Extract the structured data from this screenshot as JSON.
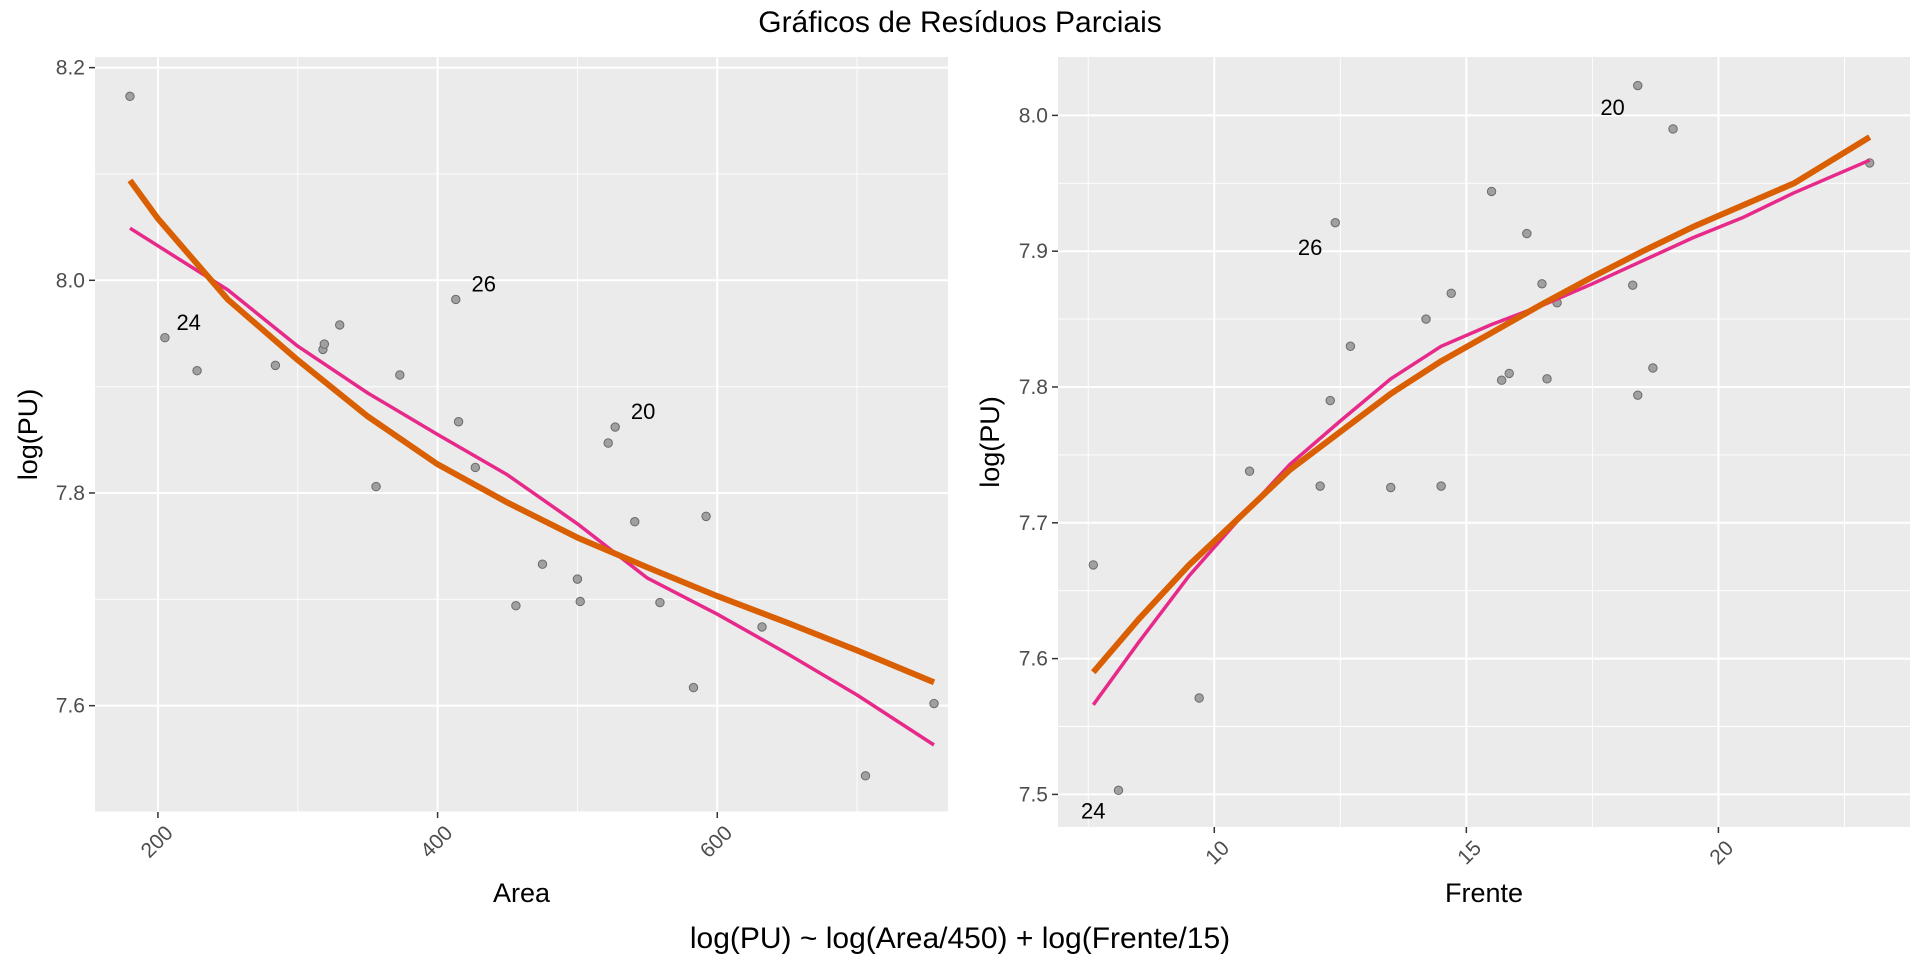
{
  "title": "Gráficos de Resíduos Parciais",
  "caption": "log(PU) ~ log(Area/450) + log(Frente/15)",
  "colors": {
    "panel_bg": "#EBEBEB",
    "grid": "#FFFFFF",
    "point": "#A0A0A0",
    "pink": "#E7298A",
    "orange": "#D95F02"
  },
  "chart_data": [
    {
      "type": "scatter",
      "xlabel": "Area",
      "ylabel": "log(PU)",
      "xlim": [
        155,
        765
      ],
      "ylim": [
        7.5,
        8.21
      ],
      "xticks": [
        200,
        400,
        600
      ],
      "yticks": [
        7.6,
        7.8,
        8.0,
        8.2
      ],
      "xtick_labels": [
        "200",
        "400",
        "600"
      ],
      "ytick_labels": [
        "7.6",
        "7.8",
        "8.0",
        "8.2"
      ],
      "points": [
        {
          "x": 180,
          "y": 8.173
        },
        {
          "x": 205,
          "y": 7.946
        },
        {
          "x": 228,
          "y": 7.915
        },
        {
          "x": 284,
          "y": 7.92
        },
        {
          "x": 318,
          "y": 7.935
        },
        {
          "x": 319,
          "y": 7.94
        },
        {
          "x": 330,
          "y": 7.958
        },
        {
          "x": 356,
          "y": 7.806
        },
        {
          "x": 373,
          "y": 7.911
        },
        {
          "x": 413,
          "y": 7.982
        },
        {
          "x": 415,
          "y": 7.867
        },
        {
          "x": 427,
          "y": 7.824
        },
        {
          "x": 456,
          "y": 7.694
        },
        {
          "x": 475,
          "y": 7.733
        },
        {
          "x": 500,
          "y": 7.719
        },
        {
          "x": 502,
          "y": 7.698
        },
        {
          "x": 522,
          "y": 7.847
        },
        {
          "x": 527,
          "y": 7.862
        },
        {
          "x": 541,
          "y": 7.773
        },
        {
          "x": 559,
          "y": 7.697
        },
        {
          "x": 583,
          "y": 7.617
        },
        {
          "x": 592,
          "y": 7.778
        },
        {
          "x": 632,
          "y": 7.674
        },
        {
          "x": 706,
          "y": 7.534
        },
        {
          "x": 755,
          "y": 7.602
        }
      ],
      "annotations": [
        {
          "text": "24",
          "x": 222,
          "y": 7.961
        },
        {
          "text": "26",
          "x": 433,
          "y": 7.997
        },
        {
          "text": "20",
          "x": 547,
          "y": 7.877
        }
      ],
      "series": [
        {
          "color": "pink",
          "width": 3.5,
          "x": [
            180,
            250,
            300,
            350,
            400,
            450,
            500,
            550,
            600,
            650,
            700,
            755
          ],
          "y": [
            8.049,
            7.991,
            7.938,
            7.894,
            7.855,
            7.817,
            7.771,
            7.72,
            7.686,
            7.649,
            7.61,
            7.563
          ]
        },
        {
          "color": "orange",
          "width": 6,
          "x": [
            180,
            200,
            250,
            300,
            350,
            400,
            450,
            500,
            550,
            600,
            650,
            700,
            755
          ],
          "y": [
            8.094,
            8.058,
            7.982,
            7.925,
            7.872,
            7.827,
            7.791,
            7.758,
            7.73,
            7.703,
            7.678,
            7.652,
            7.622
          ]
        }
      ]
    },
    {
      "type": "scatter",
      "xlabel": "Frente",
      "ylabel": "log(PU)",
      "xlim": [
        6.9,
        23.8
      ],
      "ylim": [
        7.476,
        8.043
      ],
      "xticks": [
        10,
        15,
        20
      ],
      "yticks": [
        7.5,
        7.6,
        7.7,
        7.8,
        7.9,
        8.0
      ],
      "xtick_labels": [
        "10",
        "15",
        "20"
      ],
      "ytick_labels": [
        "7.5",
        "7.6",
        "7.7",
        "7.8",
        "7.9",
        "8.0"
      ],
      "points": [
        {
          "x": 7.6,
          "y": 7.669
        },
        {
          "x": 8.1,
          "y": 7.503
        },
        {
          "x": 9.7,
          "y": 7.571
        },
        {
          "x": 10.7,
          "y": 7.738
        },
        {
          "x": 12.1,
          "y": 7.727
        },
        {
          "x": 12.3,
          "y": 7.79
        },
        {
          "x": 12.4,
          "y": 7.921
        },
        {
          "x": 12.7,
          "y": 7.83
        },
        {
          "x": 13.5,
          "y": 7.726
        },
        {
          "x": 14.2,
          "y": 7.85
        },
        {
          "x": 14.5,
          "y": 7.727
        },
        {
          "x": 14.7,
          "y": 7.869
        },
        {
          "x": 15.5,
          "y": 7.944
        },
        {
          "x": 15.7,
          "y": 7.805
        },
        {
          "x": 15.85,
          "y": 7.81
        },
        {
          "x": 16.2,
          "y": 7.913
        },
        {
          "x": 16.5,
          "y": 7.876
        },
        {
          "x": 16.6,
          "y": 7.806
        },
        {
          "x": 16.8,
          "y": 7.862
        },
        {
          "x": 18.3,
          "y": 7.875
        },
        {
          "x": 18.4,
          "y": 7.794
        },
        {
          "x": 18.4,
          "y": 8.022
        },
        {
          "x": 18.7,
          "y": 7.814
        },
        {
          "x": 19.1,
          "y": 7.99
        },
        {
          "x": 23.0,
          "y": 7.965
        }
      ],
      "annotations": [
        {
          "text": "24",
          "x": 7.6,
          "y": 7.488
        },
        {
          "text": "26",
          "x": 11.9,
          "y": 7.903
        },
        {
          "text": "20",
          "x": 17.9,
          "y": 8.006
        }
      ],
      "series": [
        {
          "color": "pink",
          "width": 3.5,
          "x": [
            7.6,
            8.5,
            9.5,
            10.5,
            11.5,
            12.5,
            13.5,
            14.5,
            15.5,
            16.5,
            17.5,
            18.5,
            19.5,
            20.5,
            21.5,
            23.0
          ],
          "y": [
            7.566,
            7.612,
            7.661,
            7.703,
            7.743,
            7.775,
            7.806,
            7.83,
            7.846,
            7.86,
            7.876,
            7.893,
            7.91,
            7.925,
            7.943,
            7.967
          ]
        },
        {
          "color": "orange",
          "width": 6,
          "x": [
            7.6,
            8.5,
            9.5,
            10.5,
            11.5,
            12.5,
            13.5,
            14.5,
            15.5,
            16.5,
            17.5,
            18.5,
            19.5,
            20.5,
            21.5,
            23.0
          ],
          "y": [
            7.59,
            7.629,
            7.669,
            7.704,
            7.739,
            7.767,
            7.795,
            7.819,
            7.84,
            7.861,
            7.881,
            7.9,
            7.918,
            7.934,
            7.95,
            7.984
          ]
        }
      ]
    }
  ]
}
